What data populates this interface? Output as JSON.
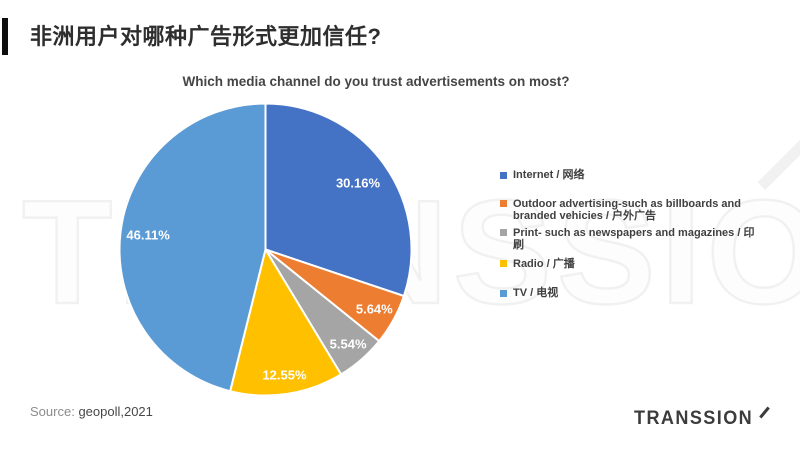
{
  "page": {
    "title": "非洲用户对哪种广告形式更加信任?",
    "source_label": "Source:",
    "source_value": "geopoll,2021",
    "brand_logo": "TRANSSION",
    "watermark": "TRANSSION"
  },
  "chart_data": {
    "type": "pie",
    "title": "Which media channel do you trust advertisements on most?",
    "categories": [
      "Internet / 网络",
      "Outdoor advertising-such as billboards and branded vehicies / 户外广告",
      "Print- such as newspapers and magazines / 印刷",
      "Radio / 广播",
      "TV / 电视"
    ],
    "values": [
      30.16,
      5.64,
      5.54,
      12.55,
      46.11
    ],
    "labels": [
      "30.16%",
      "5.64%",
      "5.54%",
      "12.55%",
      "46.11%"
    ],
    "colors": [
      "#4472C4",
      "#ED7D31",
      "#A5A5A5",
      "#FFC000",
      "#5B9BD5"
    ],
    "slice_border_color": "#ffffff",
    "label_color": "#ffffff",
    "label_radius_frac": [
      0.78,
      0.85,
      0.86,
      0.87,
      0.81
    ],
    "start_angle_deg": 0,
    "direction": "clockwise",
    "legend_position": "right"
  }
}
